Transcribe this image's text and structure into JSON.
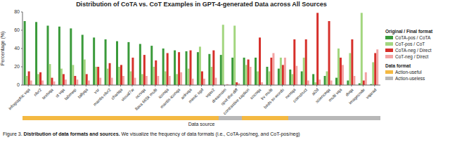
{
  "chart_data": {
    "type": "bar",
    "title": "Distribution of CoTA vs. CoT Examples in GPT-4-generated Data across All Sources",
    "y_label": "Percentage (%)",
    "x_label": "Data source",
    "categories": [
      "infographic vqa",
      "nlvr2",
      "textvqa",
      "st vqa",
      "tabmwp",
      "tallyqa",
      "vsr",
      "mantis-nlvr2",
      "chartqa",
      "visual7w",
      "ocrvqa",
      "llava 665k multi",
      "iconqa",
      "mantis-iconqa",
      "aokvqa",
      "mimic cgd",
      "vqav2",
      "dreamsim",
      "spot-the-diff",
      "contrastive caption",
      "cocoqa",
      "lrv multi",
      "birds-to-words",
      "nextqa",
      "coinstruct",
      "ai2d",
      "scienceqa",
      "multi vqa",
      "dvqa",
      "imagecode",
      "vqarad"
    ],
    "series": [
      {
        "name": "CoTA-pos / CoTA",
        "color": "#3a9a3a",
        "values": [
          70,
          69,
          65,
          64,
          62,
          55,
          52,
          50,
          48,
          47,
          45,
          43,
          40,
          38,
          37,
          36,
          34,
          33,
          30,
          30,
          30,
          20,
          18,
          17,
          15,
          12,
          10,
          8,
          5,
          2,
          1
        ]
      },
      {
        "name": "CoT-pos / CoT",
        "color": "#a3d67f",
        "values": [
          10,
          12,
          23,
          18,
          22,
          28,
          20,
          18,
          20,
          15,
          12,
          20,
          15,
          12,
          18,
          42,
          20,
          66,
          65,
          22,
          15,
          15,
          30,
          12,
          30,
          3,
          15,
          40,
          35,
          79,
          25
        ]
      },
      {
        "name": "CoTA-neg / Direct",
        "color": "#d6302b",
        "values": [
          15,
          14,
          8,
          12,
          10,
          12,
          20,
          24,
          22,
          30,
          33,
          27,
          35,
          36,
          38,
          15,
          38,
          0,
          3,
          28,
          52,
          30,
          22,
          50,
          50,
          79,
          70,
          30,
          50,
          5,
          35
        ]
      },
      {
        "name": "CoT-neg / Direct",
        "color": "#f3a3a3",
        "values": [
          5,
          5,
          4,
          6,
          6,
          5,
          8,
          8,
          10,
          8,
          10,
          10,
          10,
          14,
          7,
          7,
          8,
          1,
          2,
          20,
          3,
          35,
          30,
          21,
          5,
          6,
          5,
          22,
          10,
          14,
          39
        ]
      }
    ],
    "ylim": [
      0,
      80
    ],
    "yticks": [
      0,
      20,
      40,
      60,
      80
    ],
    "grid": false,
    "legend": "right",
    "legend_title": "Original / Final format",
    "data_source": {
      "legend_title": "Data format",
      "categories": [
        "Action-useful",
        "Action-useless"
      ],
      "colors": [
        "#f4b942",
        "#b8b8b8"
      ],
      "values": [
        "Action-useful",
        "Action-useful",
        "Action-useful",
        "Action-useful",
        "Action-useful",
        "Action-useful",
        "Action-useful",
        "Action-useful",
        "Action-useful",
        "Action-useful",
        "Action-useful",
        "Action-useful",
        "Action-useful",
        "Action-useful",
        "Action-useful",
        "Action-useful",
        "Action-useful",
        "Action-useless",
        "Action-useless",
        "Action-useful",
        "Action-useful",
        "Action-useful",
        "Action-useful",
        "Action-useless",
        "Action-useless",
        "Action-useless",
        "Action-useless",
        "Action-useless",
        "Action-useless",
        "Action-useless",
        "Action-useless"
      ]
    },
    "caption_label": "Figure 3.",
    "caption_title": "Distribution of data formats and sources.",
    "caption_text": "We visualize the frequency of data formats (i.e., CoTA-pos/neg, and CoT-pos/neg)"
  }
}
